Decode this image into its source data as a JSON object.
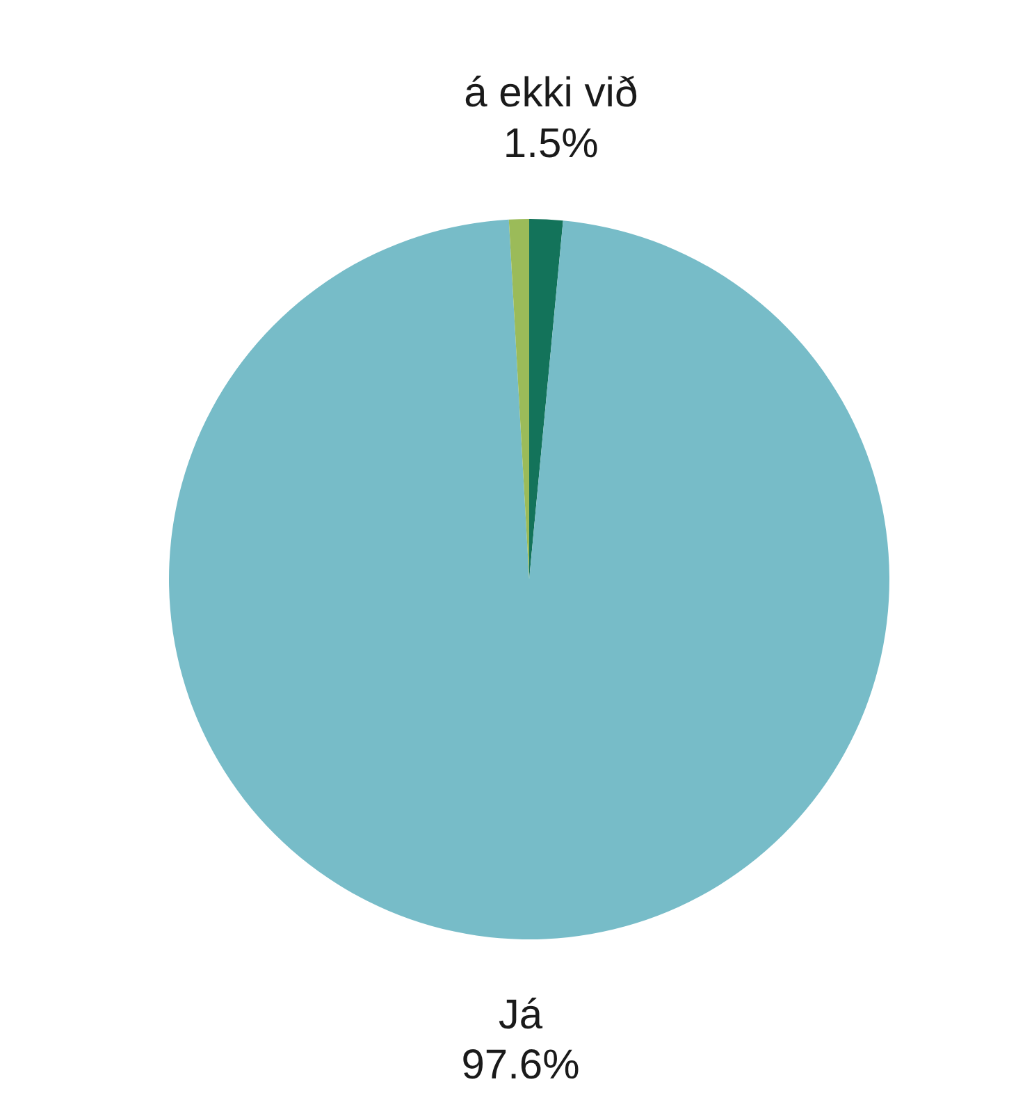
{
  "chart_data": {
    "type": "pie",
    "categories": [
      "á ekki við",
      "Já",
      null
    ],
    "values": [
      1.5,
      97.6,
      0.9
    ],
    "colors": [
      "#13735a",
      "#77bcc8",
      "#9bbb59"
    ],
    "value_labels": [
      "1.5%",
      "97.6%",
      null
    ]
  }
}
